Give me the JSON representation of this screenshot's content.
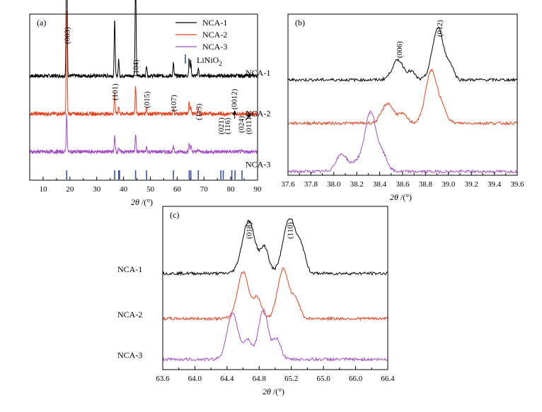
{
  "chart_data": [
    {
      "type": "line",
      "panel_label": "(a)",
      "xlabel_main": "2θ",
      "xlabel_unit": "/(°)",
      "xlim": [
        5,
        90
      ],
      "x_ticks": [
        10,
        20,
        30,
        40,
        50,
        60,
        70,
        80,
        90
      ],
      "series": [
        {
          "name": "NCA-1",
          "color": "#000000",
          "offset": 0.66,
          "peaks": [
            [
              18.8,
              1.0
            ],
            [
              36.7,
              0.36
            ],
            [
              38.2,
              0.1
            ],
            [
              44.5,
              0.62
            ],
            [
              48.6,
              0.07
            ],
            [
              58.6,
              0.08
            ],
            [
              64.5,
              0.11
            ],
            [
              65.1,
              0.09
            ],
            [
              67.9,
              0.05
            ]
          ]
        },
        {
          "name": "NCA-2",
          "color": "#e8401c",
          "offset": 0.42,
          "peaks": [
            [
              18.8,
              0.66
            ],
            [
              36.7,
              0.14
            ],
            [
              38.2,
              0.05
            ],
            [
              44.5,
              0.18
            ],
            [
              48.6,
              0.04
            ],
            [
              58.6,
              0.04
            ],
            [
              64.5,
              0.07
            ],
            [
              65.1,
              0.05
            ],
            [
              67.9,
              0.03
            ]
          ]
        },
        {
          "name": "NCA-3",
          "color": "#a24cc4",
          "offset": 0.18,
          "peaks": [
            [
              18.8,
              0.24
            ],
            [
              36.7,
              0.1
            ],
            [
              38.2,
              0.03
            ],
            [
              44.5,
              0.12
            ],
            [
              48.6,
              0.03
            ],
            [
              58.6,
              0.03
            ],
            [
              64.5,
              0.05
            ],
            [
              65.1,
              0.04
            ],
            [
              67.9,
              0.02
            ]
          ]
        }
      ],
      "legend": [
        {
          "label": "NCA-1",
          "color": "#000000"
        },
        {
          "label": "NCA-2",
          "color": "#e8401c"
        },
        {
          "label": "NCA-3",
          "color": "#a24cc4"
        }
      ],
      "reference": {
        "label": "LiNiO",
        "subscript": "2",
        "color": "#3b4fa8",
        "positions": [
          18.8,
          36.7,
          38.2,
          38.5,
          44.5,
          48.6,
          58.6,
          64.5,
          65.1,
          67.9,
          76.3,
          77.2,
          80.4,
          81.6,
          84.2
        ]
      },
      "annotations": [
        {
          "text": "(003)",
          "x": 18.8
        },
        {
          "text": "(101)",
          "x": 36.7
        },
        {
          "text": "(104)",
          "x": 44.5
        },
        {
          "text": "(015)",
          "x": 48.6
        },
        {
          "text": "(107)",
          "x": 58.6
        },
        {
          "text": "(113)",
          "x": 67.9
        },
        {
          "text": "(021)",
          "x": 76.3
        },
        {
          "text": "(116)",
          "x": 78.6
        },
        {
          "text": "(0012)",
          "x": 81.2
        },
        {
          "text": "(024)",
          "x": 83.8
        },
        {
          "text": "(0111)",
          "x": 86.6
        }
      ]
    },
    {
      "type": "line",
      "panel_label": "(b)",
      "xlabel_main": "2θ",
      "xlabel_unit": "/(°)",
      "xlim": [
        37.6,
        39.6
      ],
      "x_ticks": [
        "37.6",
        "37.8",
        "38.0",
        "38.2",
        "38.4",
        "38.6",
        "38.8",
        "39.0",
        "39.2",
        "39.4",
        "39.6"
      ],
      "series": [
        {
          "name": "NCA-1",
          "color": "#000000",
          "offset": 0.77,
          "peaks": [
            [
              38.56,
              0.16,
              0.05
            ],
            [
              38.68,
              0.06,
              0.03
            ],
            [
              38.91,
              0.42,
              0.05
            ],
            [
              39.02,
              0.1,
              0.03
            ]
          ]
        },
        {
          "name": "NCA-2",
          "color": "#e8401c",
          "offset": 0.42,
          "peaks": [
            [
              38.47,
              0.16,
              0.05
            ],
            [
              38.6,
              0.07,
              0.04
            ],
            [
              38.85,
              0.42,
              0.05
            ],
            [
              38.95,
              0.1,
              0.04
            ]
          ]
        },
        {
          "name": "NCA-3",
          "color": "#a24cc4",
          "offset": 0.03,
          "peaks": [
            [
              38.07,
              0.14,
              0.05
            ],
            [
              38.2,
              0.07,
              0.04
            ],
            [
              38.32,
              0.48,
              0.05
            ],
            [
              38.43,
              0.12,
              0.04
            ]
          ]
        }
      ],
      "annotations": [
        {
          "text": "(006)",
          "x": 38.57
        },
        {
          "text": "(012)",
          "x": 38.92
        }
      ]
    },
    {
      "type": "line",
      "panel_label": "(c)",
      "xlabel_main": "2θ",
      "xlabel_unit": "/(°)",
      "xlim": [
        63.6,
        66.4
      ],
      "x_ticks": [
        "63.6",
        "64.0",
        "64.4",
        "64.8",
        "65.2",
        "65.6",
        "66.0",
        "66.4"
      ],
      "series": [
        {
          "name": "NCA-1",
          "color": "#000000",
          "offset": 0.66,
          "peaks": [
            [
              64.67,
              0.36,
              0.08
            ],
            [
              64.87,
              0.17,
              0.05
            ],
            [
              65.18,
              0.38,
              0.08
            ],
            [
              65.33,
              0.14,
              0.05
            ]
          ]
        },
        {
          "name": "NCA-2",
          "color": "#e8401c",
          "offset": 0.35,
          "peaks": [
            [
              64.6,
              0.32,
              0.07
            ],
            [
              64.78,
              0.14,
              0.05
            ],
            [
              65.1,
              0.34,
              0.07
            ],
            [
              65.26,
              0.12,
              0.05
            ]
          ]
        },
        {
          "name": "NCA-3",
          "color": "#a24cc4",
          "offset": 0.07,
          "peaks": [
            [
              64.47,
              0.31,
              0.07
            ],
            [
              64.66,
              0.13,
              0.05
            ],
            [
              64.85,
              0.34,
              0.06
            ],
            [
              65.02,
              0.14,
              0.05
            ]
          ]
        }
      ],
      "annotations": [
        {
          "text": "(018)",
          "x": 64.67
        },
        {
          "text": "(110)",
          "x": 65.18
        }
      ]
    }
  ]
}
